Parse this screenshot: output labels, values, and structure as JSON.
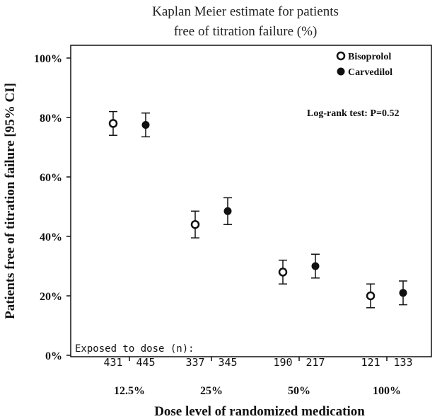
{
  "chart_data": {
    "type": "scatter",
    "title_lines": [
      "Kaplan Meier estimate for patients",
      "free of titration failure (%)"
    ],
    "xlabel": "Dose level of randomized medication",
    "ylabel": "Patients free of titration failure [95% CI]",
    "categories": [
      "12.5%",
      "25%",
      "50%",
      "100%"
    ],
    "ylim": [
      0,
      100
    ],
    "yticks": [
      0,
      20,
      40,
      60,
      80,
      100
    ],
    "ytick_labels": [
      "0%",
      "20%",
      "40%",
      "60%",
      "80%",
      "100%"
    ],
    "grid": false,
    "legend_position": "top-right",
    "series": [
      {
        "name": "Bisoprolol",
        "marker": "open-circle",
        "values": [
          78,
          44,
          28,
          20
        ],
        "ci_low": [
          74,
          39.5,
          24,
          16
        ],
        "ci_high": [
          82,
          48.5,
          32,
          24
        ],
        "exposed": [
          431,
          337,
          190,
          121
        ]
      },
      {
        "name": "Carvedilol",
        "marker": "filled-circle",
        "values": [
          77.5,
          48.5,
          30,
          21
        ],
        "ci_low": [
          73.5,
          44,
          26,
          17
        ],
        "ci_high": [
          81.5,
          53,
          34,
          25
        ],
        "exposed": [
          445,
          345,
          217,
          133
        ]
      }
    ],
    "annotation": "Log-rank test: P=0.52",
    "exposed_label": "Exposed to dose (n):"
  },
  "colors": {
    "marker": "#111111",
    "open_fill": "#ffffff",
    "axis": "#111111"
  }
}
